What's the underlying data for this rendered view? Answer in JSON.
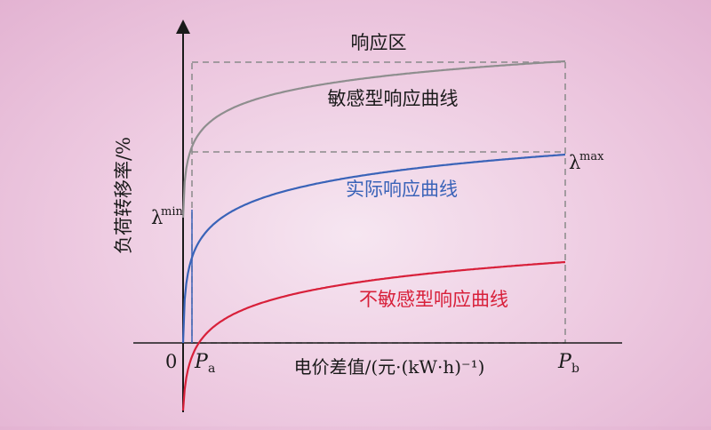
{
  "diagram": {
    "region_label": "响应区",
    "y_axis_label": "负荷转移率/%",
    "x_axis_label": "电价差值/(元·(kW·h)⁻¹)",
    "origin_label": "0",
    "pa_label": {
      "main": "P",
      "sub": "a"
    },
    "pb_label": {
      "main": "P",
      "sub": "b"
    },
    "lambda_min": {
      "main": "λ",
      "sup": "min"
    },
    "lambda_max": {
      "main": "λ",
      "sup": "max"
    },
    "curves": [
      {
        "id": "sensitive",
        "label": "敏感型响应曲线",
        "color": "#8e8e8e"
      },
      {
        "id": "actual",
        "label": "实际响应曲线",
        "color": "#3a63b8"
      },
      {
        "id": "insensitive",
        "label": "不敏感型响应曲线",
        "color": "#d8203a"
      }
    ],
    "colors": {
      "axis": "#1a1a1a",
      "dash": "#8a8a8a",
      "pa_line": "#3a63b8"
    }
  }
}
